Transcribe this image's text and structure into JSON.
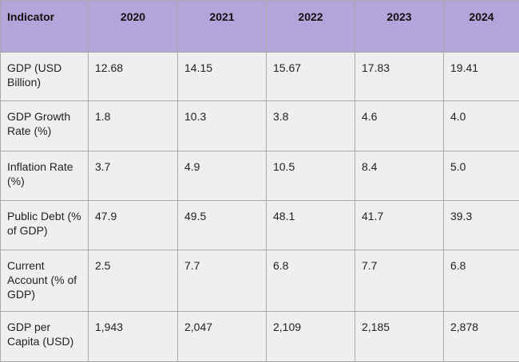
{
  "table": {
    "header": [
      "Indicator",
      "2020",
      "2021",
      "2022",
      "2023",
      "2024"
    ],
    "rows": [
      [
        "GDP (USD Billion)",
        "12.68",
        "14.15",
        "15.67",
        "17.83",
        "19.41"
      ],
      [
        "GDP Growth Rate (%)",
        "1.8",
        "10.3",
        "3.8",
        "4.6",
        "4.0"
      ],
      [
        "Inflation Rate (%)",
        "3.7",
        "4.9",
        "10.5",
        "8.4",
        "5.0"
      ],
      [
        "Public Debt (% of GDP)",
        "47.9",
        "49.5",
        "48.1",
        "41.7",
        "39.3"
      ],
      [
        "Current Account (% of GDP)",
        "2.5",
        "7.7",
        "6.8",
        "7.7",
        "6.8"
      ],
      [
        "GDP per Capita (USD)",
        "1,943",
        "2,047",
        "2,109",
        "2,185",
        "2,878"
      ]
    ]
  }
}
